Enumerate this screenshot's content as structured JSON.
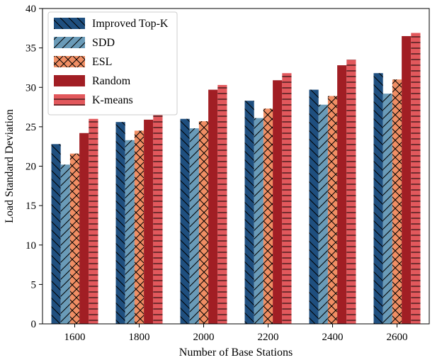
{
  "chart_data": {
    "type": "bar",
    "title": "",
    "xlabel": "Number of Base Stations",
    "ylabel": "Load Standard Deviation",
    "categories": [
      "1600",
      "1800",
      "2000",
      "2200",
      "2400",
      "2600"
    ],
    "ylim": [
      0,
      40
    ],
    "yticks": [
      "0",
      "5",
      "10",
      "15",
      "20",
      "25",
      "30",
      "35",
      "40"
    ],
    "grid": false,
    "legend_position": "top-left",
    "series": [
      {
        "name": "Improved Top-K",
        "values": [
          22.8,
          25.6,
          26.0,
          28.3,
          29.7,
          31.8
        ],
        "color": "#1f4f7f",
        "hatch": "diag-back"
      },
      {
        "name": "SDD",
        "values": [
          20.2,
          23.3,
          24.8,
          26.1,
          27.8,
          29.2
        ],
        "color": "#6a9bb8",
        "hatch": "diag-fwd"
      },
      {
        "name": "ESL",
        "values": [
          21.6,
          24.5,
          25.7,
          27.3,
          28.9,
          31.0
        ],
        "color": "#f08e64",
        "hatch": "cross"
      },
      {
        "name": "Random",
        "values": [
          24.2,
          25.9,
          29.7,
          30.9,
          32.8,
          36.5
        ],
        "color": "#a11e24",
        "hatch": "none"
      },
      {
        "name": "K-means",
        "values": [
          26.0,
          27.1,
          30.3,
          31.8,
          33.5,
          36.9
        ],
        "color": "#e2585c",
        "hatch": "horiz"
      }
    ]
  }
}
